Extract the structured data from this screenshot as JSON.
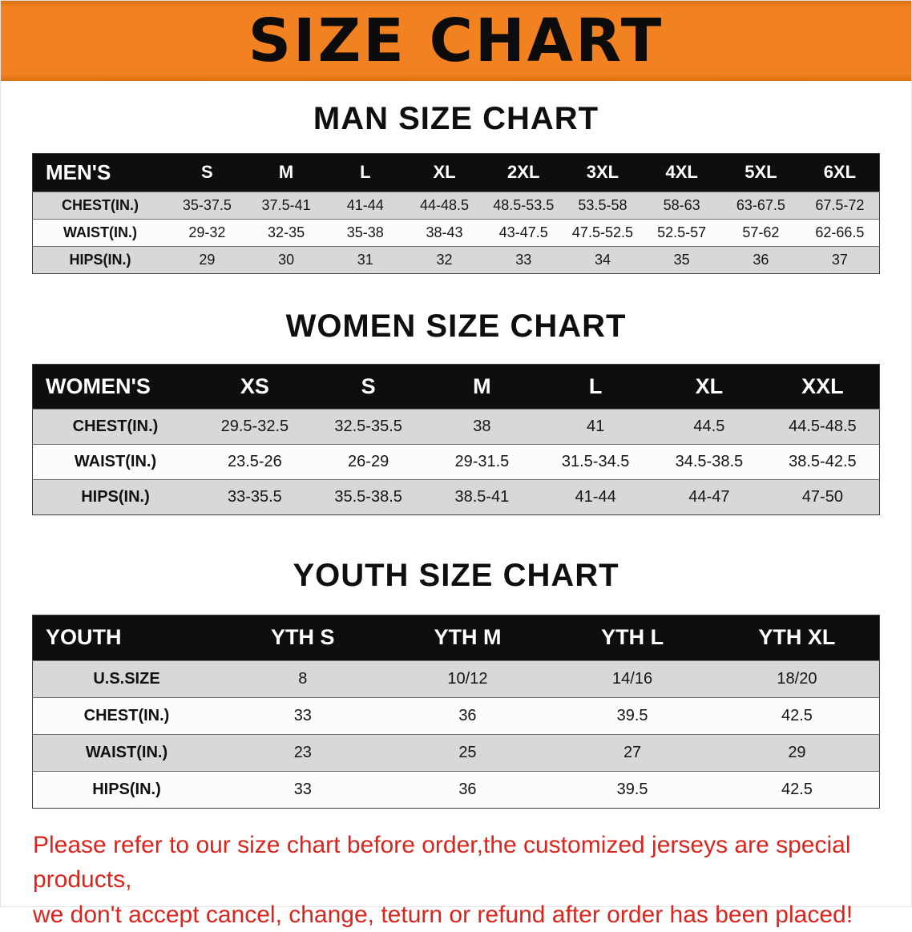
{
  "banner": {
    "title": "SIZE CHART"
  },
  "colors": {
    "banner_orange": "#F28122",
    "table_header_black": "#0E0E0E",
    "row_gray": "#D8D8D8",
    "row_white": "#FCFCFC",
    "disclaimer_red": "#DC241C"
  },
  "men": {
    "heading": "MAN SIZE CHART",
    "header": [
      "MEN'S",
      "S",
      "M",
      "L",
      "XL",
      "2XL",
      "3XL",
      "4XL",
      "5XL",
      "6XL"
    ],
    "rows": [
      [
        "CHEST(IN.)",
        "35-37.5",
        "37.5-41",
        "41-44",
        "44-48.5",
        "48.5-53.5",
        "53.5-58",
        "58-63",
        "63-67.5",
        "67.5-72"
      ],
      [
        "WAIST(IN.)",
        "29-32",
        "32-35",
        "35-38",
        "38-43",
        "43-47.5",
        "47.5-52.5",
        "52.5-57",
        "57-62",
        "62-66.5"
      ],
      [
        "HIPS(IN.)",
        "29",
        "30",
        "31",
        "32",
        "33",
        "34",
        "35",
        "36",
        "37"
      ]
    ]
  },
  "women": {
    "heading": "WOMEN SIZE CHART",
    "header": [
      "WOMEN'S",
      "XS",
      "S",
      "M",
      "L",
      "XL",
      "XXL"
    ],
    "rows": [
      [
        "CHEST(IN.)",
        "29.5-32.5",
        "32.5-35.5",
        "38",
        "41",
        "44.5",
        "44.5-48.5"
      ],
      [
        "WAIST(IN.)",
        "23.5-26",
        "26-29",
        "29-31.5",
        "31.5-34.5",
        "34.5-38.5",
        "38.5-42.5"
      ],
      [
        "HIPS(IN.)",
        "33-35.5",
        "35.5-38.5",
        "38.5-41",
        "41-44",
        "44-47",
        "47-50"
      ]
    ]
  },
  "youth": {
    "heading": "YOUTH SIZE CHART",
    "header": [
      "YOUTH",
      "YTH S",
      "YTH M",
      "YTH L",
      "YTH XL"
    ],
    "rows": [
      [
        "U.S.SIZE",
        "8",
        "10/12",
        "14/16",
        "18/20"
      ],
      [
        "CHEST(IN.)",
        "33",
        "36",
        "39.5",
        "42.5"
      ],
      [
        "WAIST(IN.)",
        "23",
        "25",
        "27",
        "29"
      ],
      [
        "HIPS(IN.)",
        "33",
        "36",
        "39.5",
        "42.5"
      ]
    ]
  },
  "disclaimer": {
    "line1": "Please refer to our size chart before order,the customized jerseys are special products,",
    "line2": "we don't accept cancel, change, teturn or refund after order has been placed!"
  }
}
